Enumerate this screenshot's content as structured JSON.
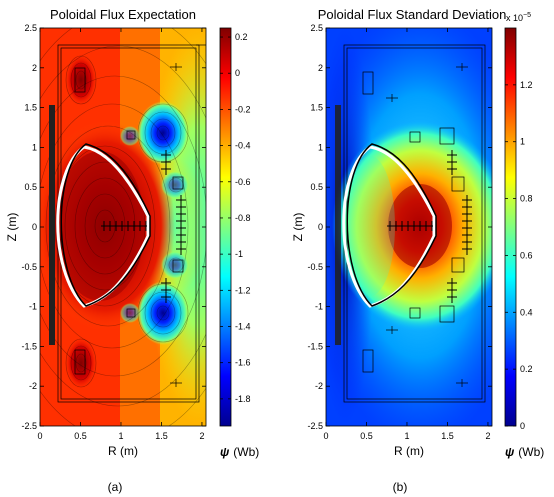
{
  "chart_data": [
    {
      "type": "heatmap",
      "panel": "(a)",
      "title": "Poloidal Flux Expectation",
      "xlabel": "R (m)",
      "ylabel": "Z (m)",
      "xlim": [
        0,
        2.05
      ],
      "ylim": [
        -2.5,
        2.5
      ],
      "x_ticks": [
        "0",
        "0.5",
        "1",
        "1.5",
        "2"
      ],
      "y_ticks": [
        "-2.5",
        "-2",
        "-1.5",
        "-1",
        "-0.5",
        "0",
        "0.5",
        "1",
        "1.5",
        "2",
        "2.5"
      ],
      "colorbar": {
        "label_symbol": "ψ",
        "label_unit": "(Wb)",
        "range": [
          -1.95,
          0.25
        ],
        "ticks": [
          "0.2",
          "0",
          "-0.2",
          "-0.4",
          "-0.6",
          "-0.8",
          "-1",
          "-1.2",
          "-1.4",
          "-1.6",
          "-1.8"
        ],
        "colormap": "jet"
      },
      "contour_lines": true,
      "boundary_curves": [
        "black",
        "white"
      ]
    },
    {
      "type": "heatmap",
      "panel": "(b)",
      "title": "Poloidal Flux Standard Deviation",
      "xlabel": "R (m)",
      "ylabel": "Z (m)",
      "xlim": [
        0,
        2.05
      ],
      "ylim": [
        -2.5,
        2.5
      ],
      "x_ticks": [
        "0",
        "0.5",
        "1",
        "1.5",
        "2"
      ],
      "y_ticks": [
        "-2.5",
        "-2",
        "-1.5",
        "-1",
        "-0.5",
        "0",
        "0.5",
        "1",
        "1.5",
        "2",
        "2.5"
      ],
      "colorbar": {
        "label_symbol": "ψ",
        "label_unit": "(Wb)",
        "multiplier": "x 10",
        "multiplier_exp": "−5",
        "range": [
          0,
          1.4
        ],
        "ticks": [
          "1.2",
          "1",
          "0.8",
          "0.6",
          "0.4",
          "0.2",
          "0"
        ],
        "colormap": "jet"
      },
      "contour_lines": false,
      "boundary_curves": [
        "black",
        "white"
      ]
    }
  ],
  "captions": [
    "(a)",
    "(b)"
  ]
}
